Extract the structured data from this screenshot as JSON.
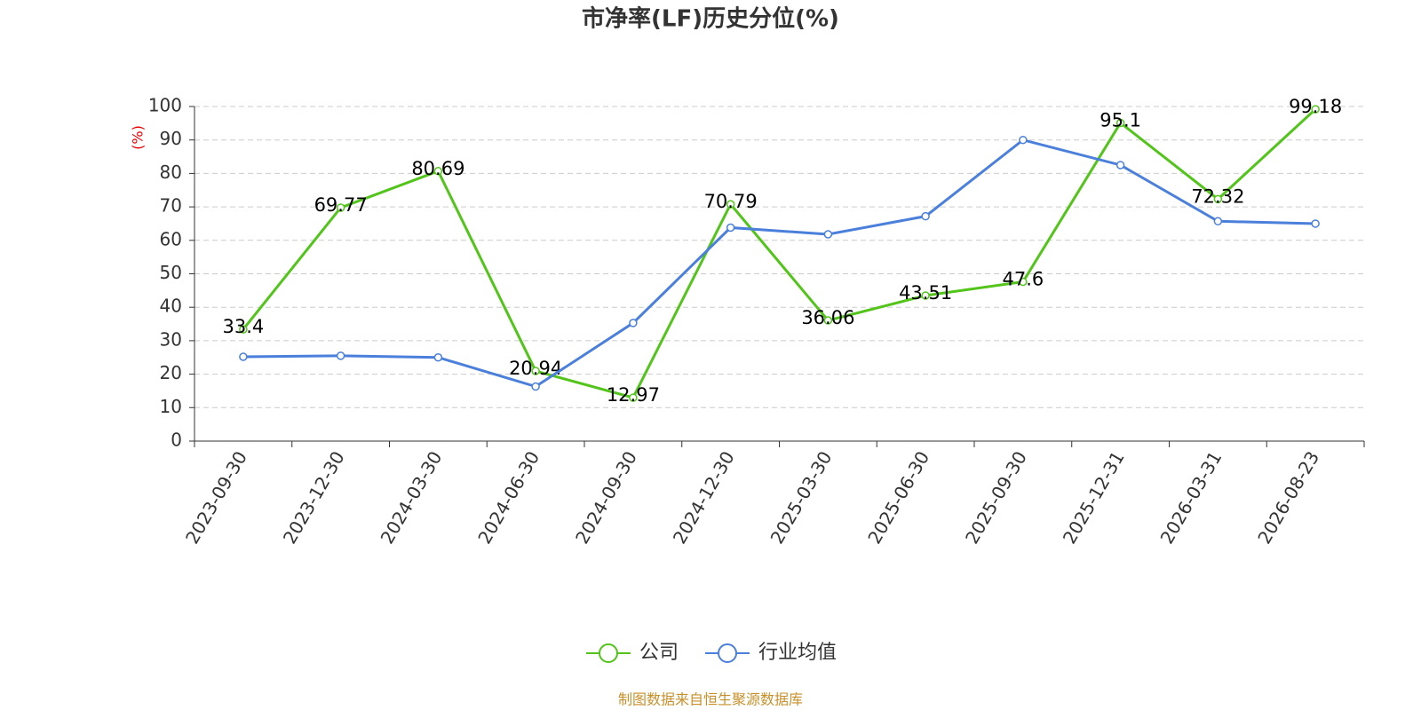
{
  "chart_data": {
    "type": "line",
    "title": "市净率(LF)历史分位(%)",
    "y_label": "(%)",
    "source": "制图数据来自恒生聚源数据库",
    "categories": [
      "2023-09-30",
      "2023-12-30",
      "2024-03-30",
      "2024-06-30",
      "2024-09-30",
      "2024-12-30",
      "2025-03-30",
      "2025-06-30",
      "2025-09-30",
      "2025-12-31",
      "2026-03-31",
      "2026-08-23"
    ],
    "series": [
      {
        "name": "公司",
        "color": "#52c41a",
        "values": [
          33.4,
          69.77,
          80.69,
          20.94,
          12.97,
          70.79,
          36.06,
          43.51,
          47.6,
          95.1,
          72.32,
          99.18
        ],
        "show_labels": true
      },
      {
        "name": "行业均值",
        "color": "#4a7fdb",
        "values": [
          25.2,
          25.5,
          25.0,
          16.3,
          35.3,
          63.8,
          61.8,
          67.2,
          90.0,
          82.5,
          65.7,
          65.0
        ],
        "show_labels": false
      }
    ],
    "ylim": [
      0,
      100
    ],
    "yticks": [
      0,
      10,
      20,
      30,
      40,
      50,
      60,
      70,
      80,
      90,
      100
    ],
    "grid": true,
    "legend": "bottom"
  }
}
